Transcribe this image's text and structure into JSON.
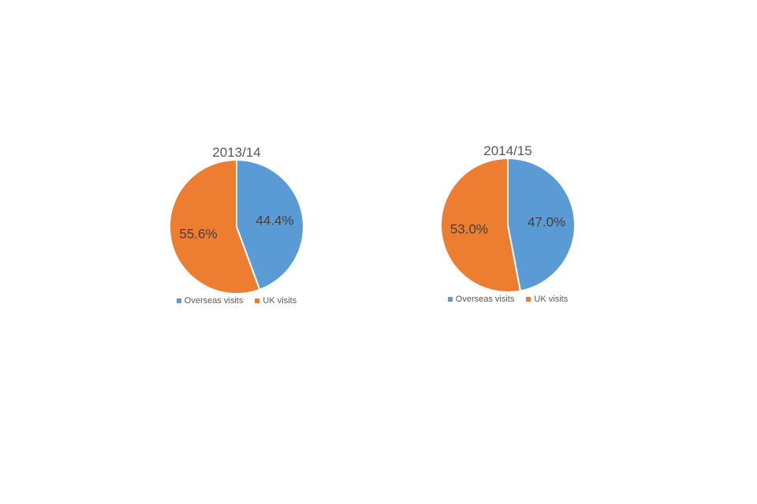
{
  "chart_data": [
    {
      "type": "pie",
      "title": "2013/14",
      "categories": [
        "Overseas visits",
        "UK visits"
      ],
      "values": [
        44.4,
        55.6
      ],
      "data_labels": [
        "44.4%",
        "55.6%"
      ],
      "colors": [
        "#5B9BD5",
        "#ED7D31"
      ],
      "legend_position": "bottom"
    },
    {
      "type": "pie",
      "title": "2014/15",
      "categories": [
        "Overseas visits",
        "UK visits"
      ],
      "values": [
        47.0,
        53.0
      ],
      "data_labels": [
        "47.0%",
        "53.0%"
      ],
      "colors": [
        "#5B9BD5",
        "#ED7D31"
      ],
      "legend_position": "bottom"
    }
  ]
}
